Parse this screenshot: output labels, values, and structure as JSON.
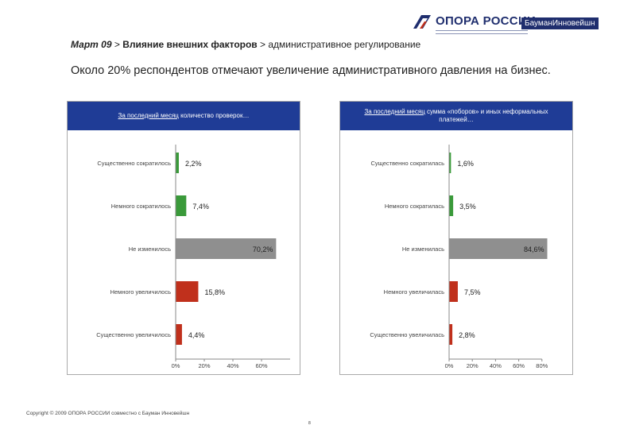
{
  "header": {
    "opora_logo": "ОПОРА РОССИИ",
    "bauman_logo": "БауманИнновейшн",
    "breadcrumb_part1": "Март 09",
    "breadcrumb_sep1": " > ",
    "breadcrumb_part2": "Влияние внешних факторов",
    "breadcrumb_sep2": " > ",
    "breadcrumb_part3": "административное регулирование"
  },
  "headline": "Около 20% респондентов отмечают увеличение административного давления на бизнес.",
  "footer": {
    "copyright": "Copyright © 2009  ОПОРА РОССИИ совместно с Бауман Инновейшн",
    "page_number": "8"
  },
  "colors": {
    "panel_header": "#1f3c96",
    "decrease": "#3a9a3a",
    "no_change": "#8f8f8f",
    "increase": "#c0301c"
  },
  "chart_data": [
    {
      "type": "bar",
      "orientation": "horizontal",
      "title_underlined": "За последний месяц",
      "title_rest": " количество проверок…",
      "categories": [
        "Существенно сократилось",
        "Немного сократилось",
        "Не изменилось",
        "Немного увеличилось",
        "Существенно увеличилось"
      ],
      "values": [
        2.2,
        7.4,
        70.2,
        15.8,
        4.4
      ],
      "value_labels": [
        "2,2%",
        "7,4%",
        "70,2%",
        "15,8%",
        "4,4%"
      ],
      "bar_colors": [
        "#3a9a3a",
        "#3a9a3a",
        "#8f8f8f",
        "#c0301c",
        "#c0301c"
      ],
      "xlim": [
        0,
        80
      ],
      "xticks": [
        "0%",
        "20%",
        "40%",
        "60%"
      ],
      "xtick_values": [
        0,
        20,
        40,
        60
      ],
      "grid": false
    },
    {
      "type": "bar",
      "orientation": "horizontal",
      "title_underlined": "За последний месяц",
      "title_rest": " сумма «поборов» и иных неформальных платежей…",
      "categories": [
        "Существенно сократилась",
        "Немного сократилась",
        "Не изменилась",
        "Немного увеличилась",
        "Существенно увеличилась"
      ],
      "values": [
        1.6,
        3.5,
        84.6,
        7.5,
        2.8
      ],
      "value_labels": [
        "1,6%",
        "3,5%",
        "84,6%",
        "7,5%",
        "2,8%"
      ],
      "bar_colors": [
        "#3a9a3a",
        "#3a9a3a",
        "#8f8f8f",
        "#c0301c",
        "#c0301c"
      ],
      "xlim": [
        0,
        80
      ],
      "xticks": [
        "0%",
        "20%",
        "40%",
        "60%",
        "80%"
      ],
      "xtick_values": [
        0,
        20,
        40,
        60,
        80
      ],
      "grid": false
    }
  ]
}
